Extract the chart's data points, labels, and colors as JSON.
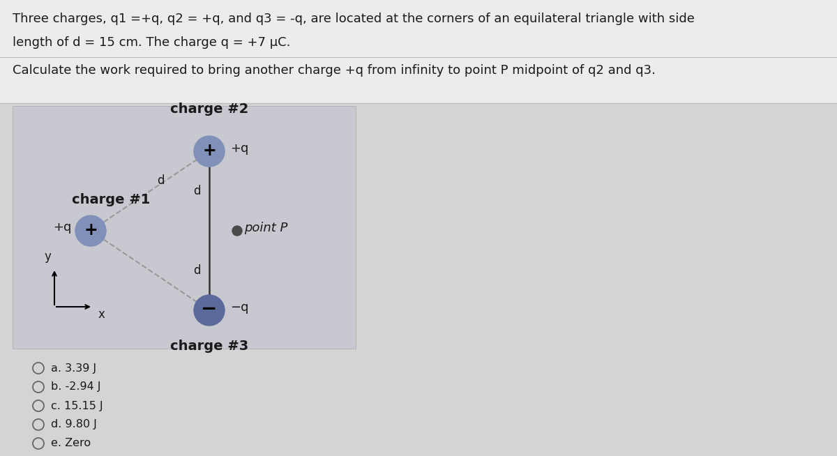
{
  "title_line1": "Three charges, q1 =+q, q2 = +q, and q3 = -q, are located at the corners of an equilateral triangle with side",
  "title_line2": "length of d = 15 cm. The charge q = +7 μC.",
  "subtitle": "Calculate the work required to bring another charge +q from infinity to point P midpoint of q2 and q3.",
  "fig_bg": "#d4d4d4",
  "top_bg": "#e8e8e8",
  "diagram_bg": "#c8c8d0",
  "charge2_label": "charge #2",
  "charge1_label": "charge #1",
  "charge3_label": "charge #3",
  "options": [
    "a. 3.39 J",
    "b. -2.94 J",
    "c. 15.15 J",
    "d. 9.80 J",
    "e. Zero"
  ],
  "charge_pos_color": "#8090b8",
  "charge_neg_color": "#5a6a9a",
  "point_p_color": "#4a4a4a",
  "text_color": "#1a1a1a",
  "dashed_color": "#999999",
  "line_color": "#333333"
}
